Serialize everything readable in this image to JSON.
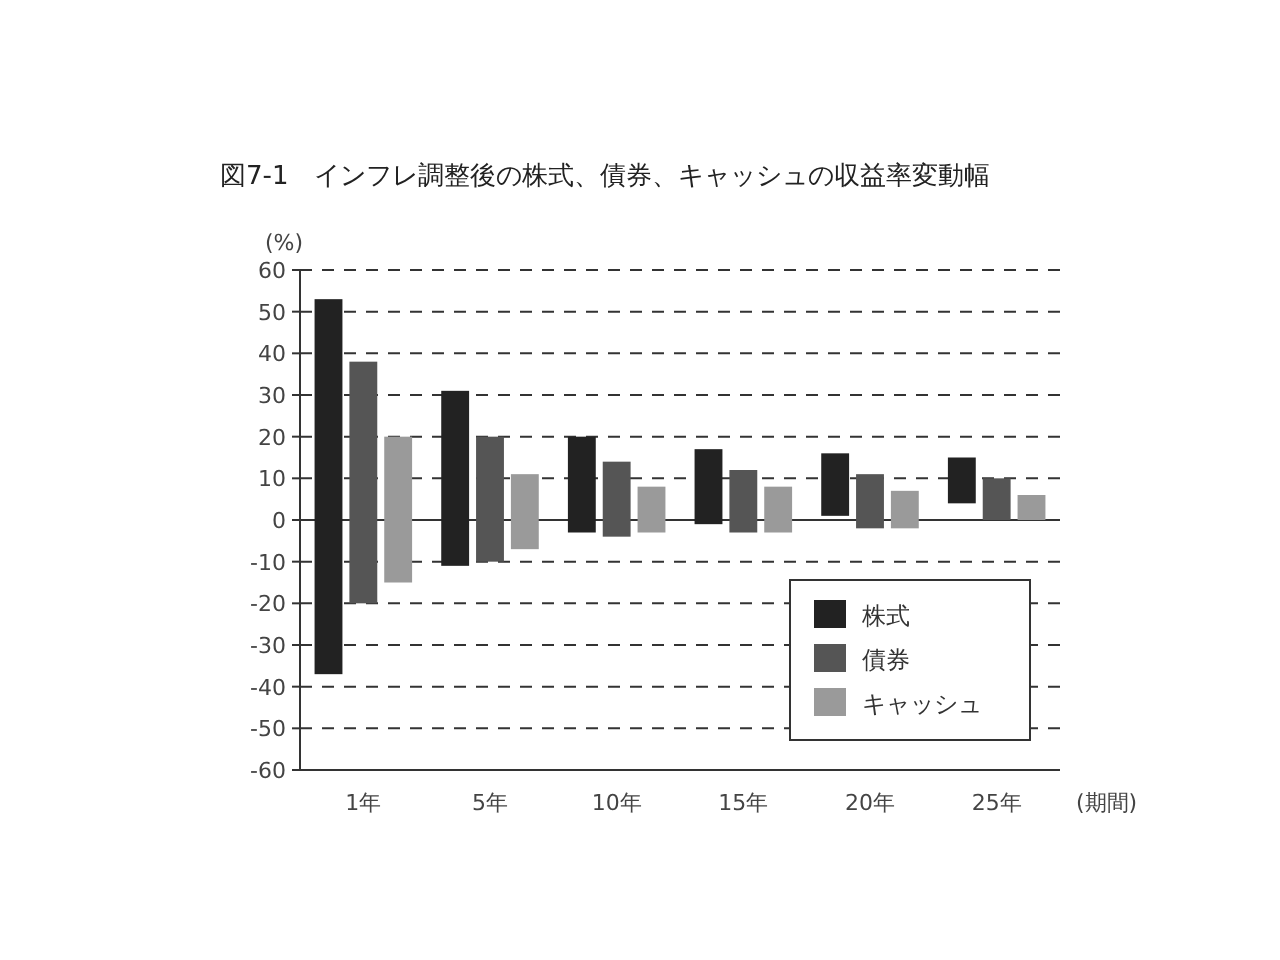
{
  "chart_data": {
    "type": "bar",
    "title": "図7-1　インフレ調整後の株式、債券、キャッシュの収益率変動幅",
    "ylabel": "(%)",
    "xlabel": "(期間)",
    "categories": [
      "1年",
      "5年",
      "10年",
      "15年",
      "20年",
      "25年"
    ],
    "series": [
      {
        "name": "株式",
        "color": "#222222",
        "base": [
          -37,
          -11,
          -3,
          -1,
          1,
          4
        ],
        "values": [
          90,
          42,
          23,
          18,
          15,
          11
        ]
      },
      {
        "name": "債券",
        "color": "#555555",
        "base": [
          -20,
          -10,
          -4,
          -3,
          -2,
          0
        ],
        "values": [
          58,
          30,
          18,
          15,
          13,
          10
        ]
      },
      {
        "name": "キャッシュ",
        "color": "#9a9a9a",
        "base": [
          -15,
          -7,
          -3,
          -3,
          -2,
          0
        ],
        "values": [
          35,
          18,
          11,
          11,
          9,
          6
        ]
      }
    ],
    "ylim": [
      -60,
      60
    ],
    "yticks": [
      -60,
      -50,
      -40,
      -30,
      -20,
      -10,
      0,
      10,
      20,
      30,
      40,
      50,
      60
    ],
    "grid": "y",
    "legend": "bottom right"
  }
}
